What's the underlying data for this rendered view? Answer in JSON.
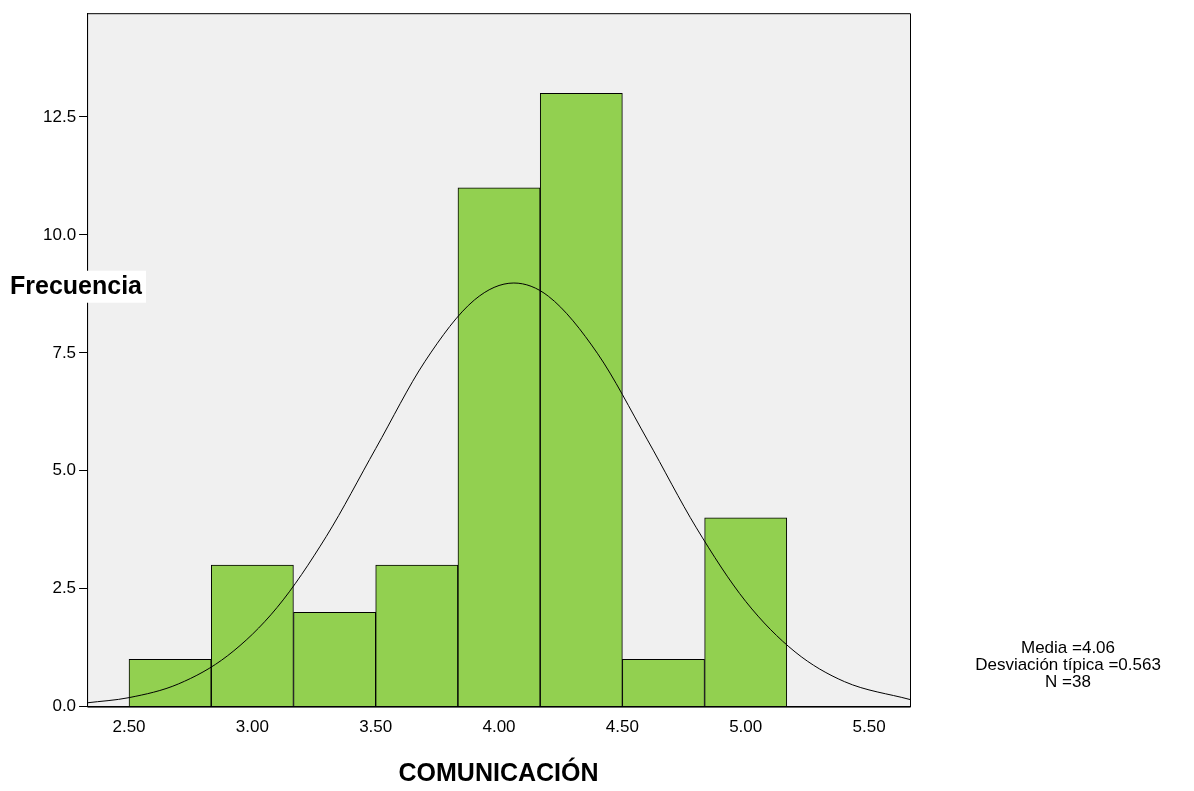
{
  "chart_data": {
    "type": "histogram",
    "xlabel": "COMUNICACIÓN",
    "ylabel": "Frecuencia",
    "xlim": [
      2.33,
      5.666
    ],
    "ylim": [
      0,
      14.7
    ],
    "xticks": [
      {
        "value": 2.5,
        "label": "2.50"
      },
      {
        "value": 3,
        "label": "3.00"
      },
      {
        "value": 3.5,
        "label": "3.50"
      },
      {
        "value": 4,
        "label": "4.00"
      },
      {
        "value": 4.5,
        "label": "4.50"
      },
      {
        "value": 5,
        "label": "5.00"
      },
      {
        "value": 5.5,
        "label": "5.50"
      }
    ],
    "yticks": [
      {
        "value": 0,
        "label": "0.0"
      },
      {
        "value": 2.5,
        "label": "2.5"
      },
      {
        "value": 5,
        "label": "5.0"
      },
      {
        "value": 7.5,
        "label": "7.5"
      },
      {
        "value": 10,
        "label": "10.0"
      },
      {
        "value": 12.5,
        "label": "12.5"
      }
    ],
    "series": [
      {
        "type": "histogram",
        "color": "#92d050",
        "bins": [
          2.5,
          2.833,
          3.167,
          3.5,
          3.833,
          4.167,
          4.5,
          4.833,
          5.167
        ],
        "values": [
          1,
          3,
          2,
          3,
          11,
          13,
          1,
          4
        ]
      },
      {
        "type": "line",
        "color": "#000000",
        "x": [
          2.33,
          2.5,
          2.7,
          2.9,
          3.1,
          3.3,
          3.5,
          3.7,
          3.9,
          4.06,
          4.2,
          4.4,
          4.6,
          4.8,
          5.0,
          5.2,
          5.4,
          5.666
        ],
        "values": [
          0.08,
          0.19,
          0.48,
          1.08,
          2.1,
          3.61,
          5.47,
          7.32,
          8.62,
          8.98,
          8.7,
          7.48,
          5.67,
          3.79,
          2.23,
          1.16,
          0.53,
          0.15
        ]
      }
    ],
    "annotations": [
      "Media =4.06",
      "Desviación típica =0.563",
      "N =38"
    ],
    "grid": false,
    "legend": false,
    "marker": "none"
  }
}
